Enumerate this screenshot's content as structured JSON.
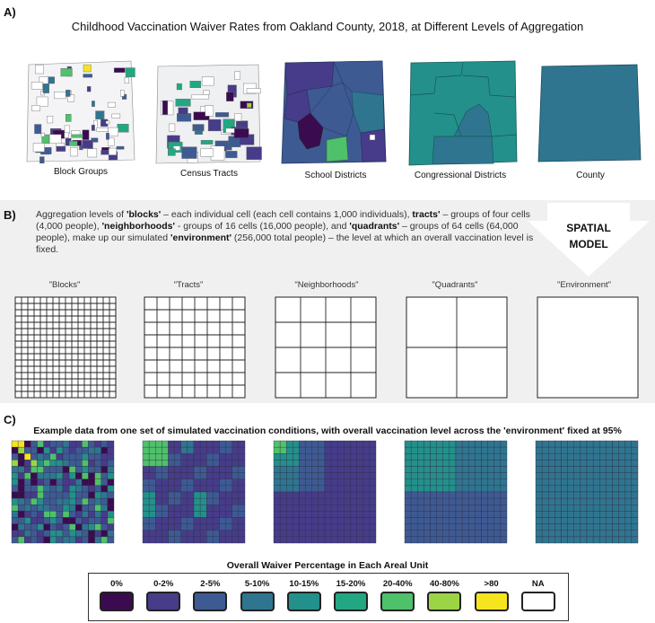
{
  "panel_a": {
    "letter": "A)",
    "title": "Childhood Vaccination Waiver Rates from Oakland County, 2018, at Different Levels of Aggregation",
    "maps": [
      {
        "caption": "Block Groups"
      },
      {
        "caption": "Census Tracts"
      },
      {
        "caption": "School Districts"
      },
      {
        "caption": "Congressional Districts"
      },
      {
        "caption": "County"
      }
    ]
  },
  "panel_b": {
    "letter": "B)",
    "desc_parts": [
      "Aggregation levels of ",
      "'blocks'",
      " – each individual cell (each cell contains 1,000 individuals), ",
      "tracts'",
      " – groups of four cells (4,000 people), ",
      "'neighborhoods'",
      " - groups of 16 cells (16,000 people), and ",
      "'quadrants'",
      " – groups of 64 cells (64,000 people), make up our simulated ",
      "'environment'",
      " (256,000 total people) – the level at which an overall vaccination level is fixed."
    ],
    "spatial_model": [
      "SPATIAL",
      "MODEL"
    ],
    "grids": [
      {
        "label": "\"Blocks\"",
        "divisions": 16
      },
      {
        "label": "\"Tracts\"",
        "divisions": 8
      },
      {
        "label": "\"Neighborhoods\"",
        "divisions": 4
      },
      {
        "label": "\"Quadrants\"",
        "divisions": 2
      },
      {
        "label": "\"Environment\"",
        "divisions": 1
      }
    ]
  },
  "panel_c": {
    "letter": "C)",
    "title": "Example data from one set of simulated vaccination conditions, with overall vaccination level across the 'environment' fixed at 95%"
  },
  "legend": {
    "title": "Overall Waiver Percentage in Each Areal Unit",
    "items": [
      {
        "label": "0%",
        "color": "#3b0b4f"
      },
      {
        "label": "0-2%",
        "color": "#463c8a"
      },
      {
        "label": "2-5%",
        "color": "#3e5a93"
      },
      {
        "label": "5-10%",
        "color": "#2f7590"
      },
      {
        "label": "10-15%",
        "color": "#23908b"
      },
      {
        "label": "15-20%",
        "color": "#22a783"
      },
      {
        "label": "20-40%",
        "color": "#4fc16a"
      },
      {
        "label": "40-80%",
        "color": "#9bd546"
      },
      {
        "label": ">80",
        "color": "#f5e51e"
      },
      {
        "label": "NA",
        "color": "#ffffff"
      }
    ]
  }
}
